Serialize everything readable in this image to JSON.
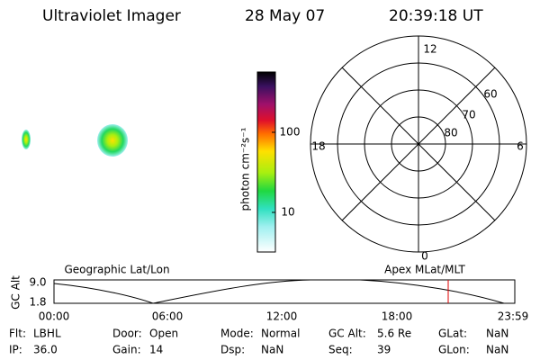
{
  "header": {
    "title": "Ultraviolet Imager",
    "date": "28 May 07",
    "time": "20:39:18 UT"
  },
  "colorbar": {
    "label": "photon cm⁻²s⁻¹",
    "ticks": [
      "100",
      "10"
    ]
  },
  "polar": {
    "mlt_labels": [
      "12",
      "6",
      "0",
      "18"
    ],
    "lat_labels": [
      "60",
      "70",
      "80"
    ]
  },
  "orbit": {
    "left_title": "Geographic Lat/Lon",
    "right_title": "Apex MLat/MLT",
    "y_label": "GC Alt",
    "y_ticks": [
      "9.0",
      "1.8"
    ],
    "x_ticks": [
      "00:00",
      "06:00",
      "12:00",
      "18:00",
      "23:59"
    ]
  },
  "info": {
    "rows": [
      [
        {
          "label": "Flt:",
          "value": "LBHL"
        },
        {
          "label": "Door:",
          "value": "Open"
        },
        {
          "label": "Mode:",
          "value": "Normal"
        },
        {
          "label": "GC Alt:",
          "value": "5.6 Re"
        },
        {
          "label": "GLat:",
          "value": "NaN"
        }
      ],
      [
        {
          "label": "IP:",
          "value": "36.0"
        },
        {
          "label": "Gain:",
          "value": "14"
        },
        {
          "label": "Dsp:",
          "value": "NaN"
        },
        {
          "label": "Seq:",
          "value": "39"
        },
        {
          "label": "GLon:",
          "value": "NaN"
        }
      ]
    ]
  }
}
